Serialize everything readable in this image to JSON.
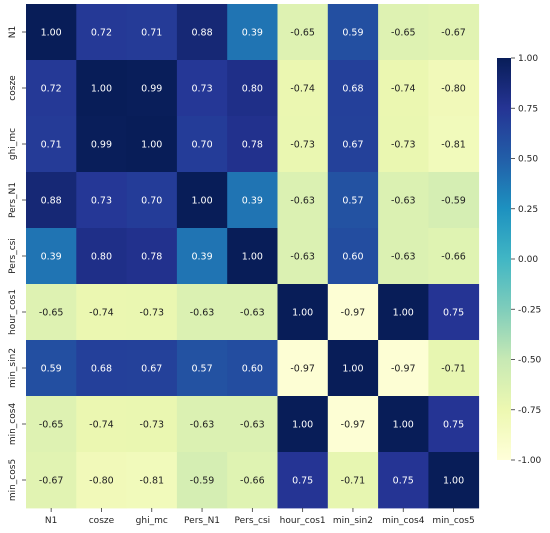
{
  "chart_data": {
    "type": "heatmap",
    "title": "",
    "xlabel": "",
    "ylabel": "",
    "x_labels": [
      "N1",
      "cosze",
      "ghi_mc",
      "Pers_N1",
      "Pers_csi",
      "hour_cos1",
      "min_sin2",
      "min_cos4",
      "min_cos5"
    ],
    "y_labels": [
      "N1",
      "cosze",
      "ghi_mc",
      "Pers_N1",
      "Pers_csi",
      "hour_cos1",
      "min_sin2",
      "min_cos4",
      "min_cos5"
    ],
    "values": [
      [
        1.0,
        0.72,
        0.71,
        0.88,
        0.39,
        -0.65,
        0.59,
        -0.65,
        -0.67
      ],
      [
        0.72,
        1.0,
        0.99,
        0.73,
        0.8,
        -0.74,
        0.68,
        -0.74,
        -0.8
      ],
      [
        0.71,
        0.99,
        1.0,
        0.7,
        0.78,
        -0.73,
        0.67,
        -0.73,
        -0.81
      ],
      [
        0.88,
        0.73,
        0.7,
        1.0,
        0.39,
        -0.63,
        0.57,
        -0.63,
        -0.59
      ],
      [
        0.39,
        0.8,
        0.78,
        0.39,
        1.0,
        -0.63,
        0.6,
        -0.63,
        -0.66
      ],
      [
        -0.65,
        -0.74,
        -0.73,
        -0.63,
        -0.63,
        1.0,
        -0.97,
        1.0,
        0.75
      ],
      [
        0.59,
        0.68,
        0.67,
        0.57,
        0.6,
        -0.97,
        1.0,
        -0.97,
        -0.71
      ],
      [
        -0.65,
        -0.74,
        -0.73,
        -0.63,
        -0.63,
        1.0,
        -0.97,
        1.0,
        0.75
      ],
      [
        -0.67,
        -0.8,
        -0.81,
        -0.59,
        -0.66,
        0.75,
        -0.71,
        0.75,
        1.0
      ]
    ],
    "value_labels": [
      [
        "1.00",
        "0.72",
        "0.71",
        "0.88",
        "0.39",
        "-0.65",
        "0.59",
        "-0.65",
        "-0.67"
      ],
      [
        "0.72",
        "1.00",
        "0.99",
        "0.73",
        "0.80",
        "-0.74",
        "0.68",
        "-0.74",
        "-0.80"
      ],
      [
        "0.71",
        "0.99",
        "1.00",
        "0.70",
        "0.78",
        "-0.73",
        "0.67",
        "-0.73",
        "-0.81"
      ],
      [
        "0.88",
        "0.73",
        "0.70",
        "1.00",
        "0.39",
        "-0.63",
        "0.57",
        "-0.63",
        "-0.59"
      ],
      [
        "0.39",
        "0.80",
        "0.78",
        "0.39",
        "1.00",
        "-0.63",
        "0.60",
        "-0.63",
        "-0.66"
      ],
      [
        "-0.65",
        "-0.74",
        "-0.73",
        "-0.63",
        "-0.63",
        "1.00",
        "-0.97",
        "1.00",
        "0.75"
      ],
      [
        "0.59",
        "0.68",
        "0.67",
        "0.57",
        "0.60",
        "-0.97",
        "1.00",
        "-0.97",
        "-0.71"
      ],
      [
        "-0.65",
        "-0.74",
        "-0.73",
        "-0.63",
        "-0.63",
        "1.00",
        "-0.97",
        "1.00",
        "0.75"
      ],
      [
        "-0.67",
        "-0.80",
        "-0.81",
        "-0.59",
        "-0.66",
        "0.75",
        "-0.71",
        "0.75",
        "1.00"
      ]
    ],
    "color_range": [
      -1.0,
      1.0
    ],
    "colorbar": {
      "ticks": [
        1.0,
        0.75,
        0.5,
        0.25,
        0.0,
        -0.25,
        -0.5,
        -0.75,
        -1.0
      ],
      "tick_labels": [
        "1.00",
        "0.75",
        "0.50",
        "0.25",
        "0.00",
        "-0.25",
        "-0.50",
        "-0.75",
        "-1.00"
      ],
      "position": "right"
    },
    "colormap": [
      "#ffffd9",
      "#edf8b1",
      "#c7e9b4",
      "#7fcdbb",
      "#41b6c4",
      "#1d91c0",
      "#225ea8",
      "#253494",
      "#081d58"
    ],
    "grid": false
  }
}
